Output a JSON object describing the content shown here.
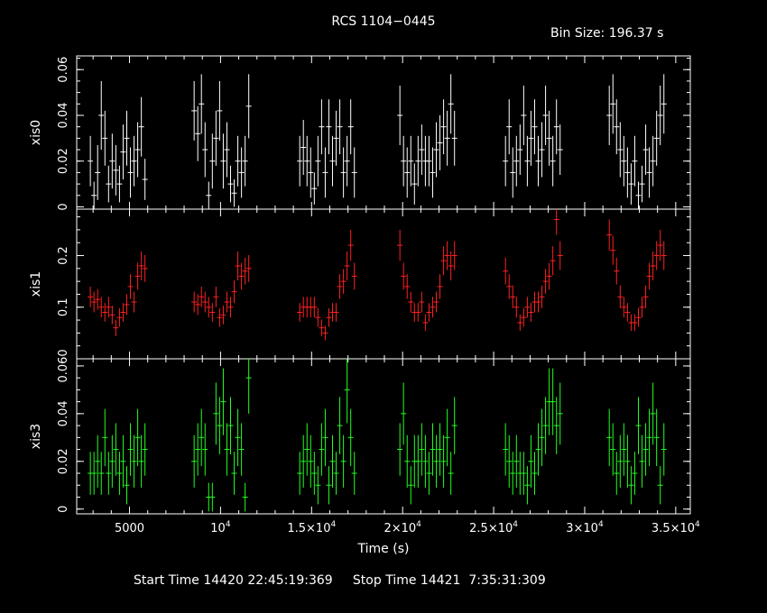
{
  "header": {
    "title": "RCS 1104−0445",
    "bin_size": "Bin Size: 196.37 s"
  },
  "footer": {
    "text": "Start Time 14420 22:45:19:369     Stop Time 14421  7:35:31:309"
  },
  "chart_data": {
    "type": "scatter",
    "xlabel": "Time (s)",
    "xlim": [
      2100,
      35800
    ],
    "x_ticks": [
      {
        "value": 5000,
        "label": "5000",
        "base": "",
        "exp": ""
      },
      {
        "value": 10000,
        "label": "",
        "base": "10",
        "exp": "4"
      },
      {
        "value": 15000,
        "label": "",
        "base": "1.5×10",
        "exp": "4"
      },
      {
        "value": 20000,
        "label": "",
        "base": "2×10",
        "exp": "4"
      },
      {
        "value": 25000,
        "label": "",
        "base": "2.5×10",
        "exp": "4"
      },
      {
        "value": 30000,
        "label": "",
        "base": "3×10",
        "exp": "4"
      },
      {
        "value": 35000,
        "label": "",
        "base": "3.5×10",
        "exp": "4"
      }
    ],
    "panels": [
      {
        "name": "xis0",
        "ylabel": "xis0",
        "color": "#ffffff",
        "ylim": [
          -0.001,
          0.066
        ],
        "y_ticks": [
          {
            "value": 0,
            "label": "0"
          },
          {
            "value": 0.02,
            "label": "0.02"
          },
          {
            "value": 0.04,
            "label": "0.04"
          },
          {
            "value": 0.06,
            "label": "0.06"
          }
        ],
        "x": [
          2850,
          3050,
          3250,
          3450,
          3650,
          3850,
          4050,
          4250,
          4450,
          4650,
          4850,
          5050,
          5250,
          5450,
          5650,
          5850,
          8550,
          8750,
          8950,
          9150,
          9350,
          9550,
          9750,
          9950,
          10150,
          10350,
          10550,
          10750,
          10950,
          11150,
          11350,
          11550,
          14350,
          14550,
          14750,
          14950,
          15150,
          15350,
          15550,
          15750,
          15950,
          16150,
          16350,
          16550,
          16750,
          16950,
          17150,
          17350,
          19850,
          20050,
          20250,
          20450,
          20650,
          20850,
          21050,
          21250,
          21450,
          21650,
          21850,
          22050,
          22250,
          22450,
          22650,
          22850,
          25650,
          25850,
          26050,
          26250,
          26450,
          26650,
          26850,
          27050,
          27250,
          27450,
          27650,
          27850,
          28050,
          28250,
          28450,
          28650,
          31350,
          31550,
          31750,
          31950,
          32150,
          32350,
          32550,
          32750,
          32950,
          33150,
          33350,
          33550,
          33750,
          33950,
          34150,
          34350
        ],
        "y": [
          0.02,
          0.005,
          0.015,
          0.04,
          0.03,
          0.01,
          0.02,
          0.016,
          0.01,
          0.024,
          0.03,
          0.015,
          0.02,
          0.025,
          0.035,
          0.012,
          0.042,
          0.032,
          0.045,
          0.025,
          0.005,
          0.02,
          0.03,
          0.042,
          0.02,
          0.025,
          0.01,
          0.006,
          0.02,
          0.015,
          0.02,
          0.044,
          0.02,
          0.026,
          0.02,
          0.015,
          0.008,
          0.02,
          0.035,
          0.015,
          0.035,
          0.02,
          0.03,
          0.035,
          0.015,
          0.02,
          0.035,
          0.015,
          0.04,
          0.02,
          0.015,
          0.02,
          0.01,
          0.02,
          0.025,
          0.02,
          0.02,
          0.015,
          0.025,
          0.028,
          0.035,
          0.03,
          0.045,
          0.03,
          0.02,
          0.035,
          0.015,
          0.02,
          0.025,
          0.04,
          0.02,
          0.03,
          0.035,
          0.02,
          0.025,
          0.04,
          0.03,
          0.02,
          0.035,
          0.025,
          0.04,
          0.045,
          0.035,
          0.025,
          0.02,
          0.015,
          0.01,
          0.02,
          0.005,
          0.01,
          0.025,
          0.015,
          0.02,
          0.03,
          0.04,
          0.045
        ],
        "err": [
          0.011,
          0.006,
          0.012,
          0.015,
          0.012,
          0.008,
          0.012,
          0.011,
          0.008,
          0.012,
          0.012,
          0.011,
          0.011,
          0.012,
          0.013,
          0.009,
          0.013,
          0.012,
          0.013,
          0.012,
          0.006,
          0.012,
          0.012,
          0.013,
          0.012,
          0.012,
          0.008,
          0.006,
          0.011,
          0.011,
          0.011,
          0.014,
          0.011,
          0.012,
          0.011,
          0.011,
          0.007,
          0.011,
          0.012,
          0.011,
          0.012,
          0.011,
          0.012,
          0.012,
          0.011,
          0.011,
          0.012,
          0.011,
          0.013,
          0.011,
          0.011,
          0.011,
          0.009,
          0.011,
          0.011,
          0.011,
          0.011,
          0.011,
          0.012,
          0.012,
          0.012,
          0.012,
          0.013,
          0.012,
          0.011,
          0.012,
          0.011,
          0.011,
          0.011,
          0.013,
          0.011,
          0.012,
          0.012,
          0.011,
          0.012,
          0.013,
          0.012,
          0.011,
          0.012,
          0.011,
          0.013,
          0.013,
          0.012,
          0.012,
          0.011,
          0.011,
          0.009,
          0.011,
          0.006,
          0.008,
          0.011,
          0.011,
          0.011,
          0.012,
          0.013,
          0.013
        ]
      },
      {
        "name": "xis1",
        "ylabel": "xis1",
        "color": "#ff2020",
        "ylim": [
          0.0,
          0.29
        ],
        "y_ticks": [
          {
            "value": 0.1,
            "label": "0.1"
          },
          {
            "value": 0.2,
            "label": "0.2"
          }
        ],
        "x": [
          2850,
          3050,
          3250,
          3450,
          3650,
          3850,
          4050,
          4250,
          4450,
          4650,
          4850,
          5050,
          5250,
          5450,
          5650,
          5850,
          8550,
          8750,
          8950,
          9150,
          9350,
          9550,
          9750,
          9950,
          10150,
          10350,
          10550,
          10750,
          10950,
          11150,
          11350,
          11550,
          14350,
          14550,
          14750,
          14950,
          15150,
          15350,
          15550,
          15750,
          15950,
          16150,
          16350,
          16550,
          16750,
          16950,
          17150,
          17350,
          19850,
          20050,
          20250,
          20450,
          20650,
          20850,
          21050,
          21250,
          21450,
          21650,
          21850,
          22050,
          22250,
          22450,
          22650,
          22850,
          25650,
          25850,
          26050,
          26250,
          26450,
          26650,
          26850,
          27050,
          27250,
          27450,
          27650,
          27850,
          28050,
          28250,
          28450,
          28650,
          31350,
          31550,
          31750,
          31950,
          32150,
          32350,
          32550,
          32750,
          32950,
          33150,
          33350,
          33550,
          33750,
          33950,
          34150,
          34350
        ],
        "y": [
          0.12,
          0.11,
          0.115,
          0.1,
          0.09,
          0.1,
          0.085,
          0.06,
          0.08,
          0.09,
          0.105,
          0.14,
          0.11,
          0.16,
          0.18,
          0.175,
          0.11,
          0.105,
          0.12,
          0.11,
          0.1,
          0.09,
          0.12,
          0.08,
          0.085,
          0.11,
          0.1,
          0.13,
          0.18,
          0.16,
          0.17,
          0.175,
          0.09,
          0.1,
          0.1,
          0.1,
          0.1,
          0.08,
          0.06,
          0.05,
          0.08,
          0.09,
          0.09,
          0.14,
          0.15,
          0.18,
          0.22,
          0.16,
          0.22,
          0.16,
          0.14,
          0.11,
          0.09,
          0.09,
          0.11,
          0.07,
          0.09,
          0.1,
          0.11,
          0.14,
          0.19,
          0.2,
          0.18,
          0.2,
          0.17,
          0.14,
          0.12,
          0.1,
          0.07,
          0.08,
          0.1,
          0.09,
          0.11,
          0.11,
          0.12,
          0.15,
          0.16,
          0.19,
          0.27,
          0.2,
          0.24,
          0.21,
          0.17,
          0.12,
          0.1,
          0.09,
          0.07,
          0.07,
          0.08,
          0.1,
          0.12,
          0.16,
          0.18,
          0.2,
          0.22,
          0.2
        ],
        "err": [
          0.02,
          0.02,
          0.02,
          0.02,
          0.018,
          0.02,
          0.018,
          0.016,
          0.018,
          0.018,
          0.02,
          0.024,
          0.02,
          0.026,
          0.028,
          0.026,
          0.02,
          0.02,
          0.02,
          0.02,
          0.02,
          0.018,
          0.02,
          0.018,
          0.018,
          0.02,
          0.02,
          0.022,
          0.028,
          0.026,
          0.026,
          0.026,
          0.018,
          0.02,
          0.02,
          0.02,
          0.02,
          0.018,
          0.016,
          0.014,
          0.018,
          0.018,
          0.018,
          0.024,
          0.024,
          0.028,
          0.03,
          0.026,
          0.03,
          0.026,
          0.024,
          0.02,
          0.018,
          0.018,
          0.02,
          0.016,
          0.018,
          0.02,
          0.02,
          0.024,
          0.028,
          0.028,
          0.028,
          0.028,
          0.026,
          0.024,
          0.022,
          0.02,
          0.016,
          0.018,
          0.02,
          0.018,
          0.02,
          0.02,
          0.022,
          0.024,
          0.026,
          0.028,
          0.03,
          0.028,
          0.03,
          0.028,
          0.026,
          0.022,
          0.02,
          0.018,
          0.016,
          0.016,
          0.018,
          0.02,
          0.022,
          0.026,
          0.028,
          0.028,
          0.03,
          0.028
        ]
      },
      {
        "name": "xis3",
        "ylabel": "xis3",
        "color": "#20ff20",
        "ylim": [
          -0.002,
          0.063
        ],
        "y_ticks": [
          {
            "value": 0,
            "label": "0"
          },
          {
            "value": 0.02,
            "label": "0.02"
          },
          {
            "value": 0.04,
            "label": "0.04"
          },
          {
            "value": 0.06,
            "label": "0.060"
          }
        ],
        "x": [
          2850,
          3050,
          3250,
          3450,
          3650,
          3850,
          4050,
          4250,
          4450,
          4650,
          4850,
          5050,
          5250,
          5450,
          5650,
          5850,
          8550,
          8750,
          8950,
          9150,
          9350,
          9550,
          9750,
          9950,
          10150,
          10350,
          10550,
          10750,
          10950,
          11150,
          11350,
          11550,
          14350,
          14550,
          14750,
          14950,
          15150,
          15350,
          15550,
          15750,
          15950,
          16150,
          16350,
          16550,
          16750,
          16950,
          17150,
          17350,
          19850,
          20050,
          20250,
          20450,
          20650,
          20850,
          21050,
          21250,
          21450,
          21650,
          21850,
          22050,
          22250,
          22450,
          22650,
          22850,
          25650,
          25850,
          26050,
          26250,
          26450,
          26650,
          26850,
          27050,
          27250,
          27450,
          27650,
          27850,
          28050,
          28250,
          28450,
          28650,
          31350,
          31550,
          31750,
          31950,
          32150,
          32350,
          32550,
          32750,
          32950,
          33150,
          33350,
          33550,
          33750,
          33950,
          34150,
          34350
        ],
        "y": [
          0.015,
          0.015,
          0.02,
          0.015,
          0.03,
          0.015,
          0.02,
          0.025,
          0.015,
          0.02,
          0.01,
          0.025,
          0.02,
          0.03,
          0.02,
          0.025,
          0.02,
          0.025,
          0.03,
          0.025,
          0.005,
          0.005,
          0.04,
          0.035,
          0.045,
          0.025,
          0.035,
          0.015,
          0.03,
          0.025,
          0.005,
          0.055,
          0.015,
          0.02,
          0.025,
          0.02,
          0.015,
          0.01,
          0.025,
          0.03,
          0.01,
          0.02,
          0.015,
          0.035,
          0.02,
          0.05,
          0.03,
          0.015,
          0.025,
          0.04,
          0.02,
          0.01,
          0.02,
          0.02,
          0.025,
          0.02,
          0.015,
          0.025,
          0.02,
          0.025,
          0.02,
          0.03,
          0.015,
          0.035,
          0.025,
          0.02,
          0.015,
          0.02,
          0.015,
          0.015,
          0.01,
          0.02,
          0.015,
          0.025,
          0.03,
          0.035,
          0.045,
          0.045,
          0.035,
          0.04,
          0.03,
          0.025,
          0.015,
          0.02,
          0.025,
          0.02,
          0.01,
          0.015,
          0.035,
          0.02,
          0.025,
          0.03,
          0.04,
          0.03,
          0.01,
          0.025
        ],
        "err": [
          0.009,
          0.009,
          0.011,
          0.009,
          0.012,
          0.009,
          0.011,
          0.011,
          0.009,
          0.011,
          0.008,
          0.011,
          0.011,
          0.012,
          0.011,
          0.011,
          0.011,
          0.011,
          0.012,
          0.011,
          0.006,
          0.006,
          0.013,
          0.012,
          0.014,
          0.011,
          0.012,
          0.009,
          0.012,
          0.011,
          0.006,
          0.015,
          0.009,
          0.011,
          0.011,
          0.011,
          0.009,
          0.008,
          0.011,
          0.012,
          0.008,
          0.011,
          0.009,
          0.012,
          0.011,
          0.014,
          0.012,
          0.009,
          0.011,
          0.013,
          0.011,
          0.008,
          0.011,
          0.011,
          0.011,
          0.011,
          0.009,
          0.011,
          0.011,
          0.011,
          0.011,
          0.012,
          0.009,
          0.012,
          0.011,
          0.011,
          0.009,
          0.011,
          0.009,
          0.009,
          0.008,
          0.011,
          0.009,
          0.011,
          0.012,
          0.012,
          0.014,
          0.014,
          0.012,
          0.013,
          0.012,
          0.011,
          0.009,
          0.011,
          0.011,
          0.011,
          0.008,
          0.009,
          0.012,
          0.011,
          0.011,
          0.012,
          0.013,
          0.012,
          0.008,
          0.011
        ]
      }
    ]
  }
}
